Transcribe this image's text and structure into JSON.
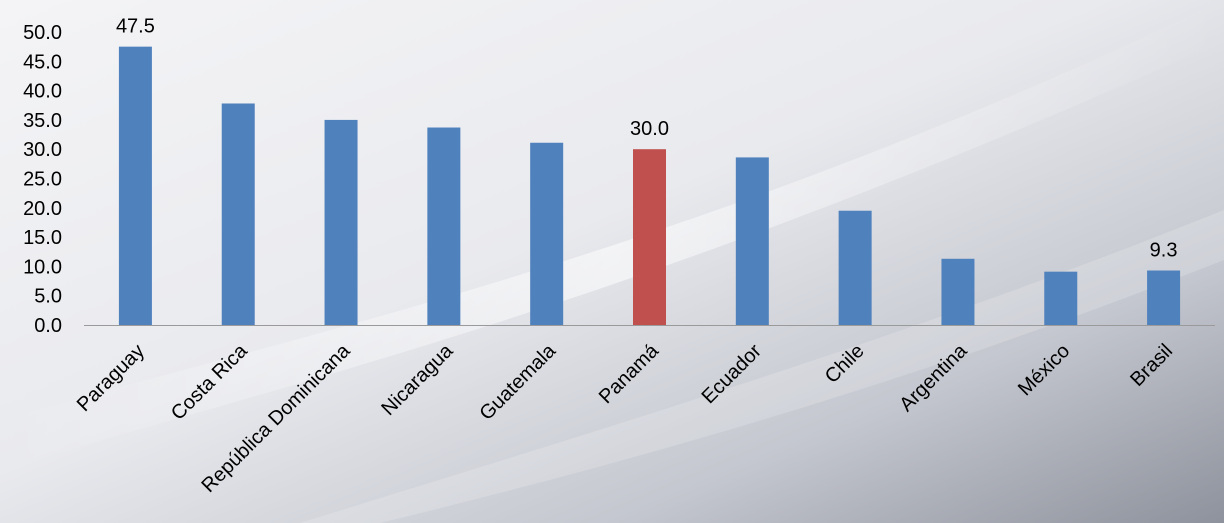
{
  "chart_data": {
    "type": "bar",
    "title": "",
    "xlabel": "",
    "ylabel": "",
    "categories": [
      "Paraguay",
      "Costa Rica",
      "República Dominicana",
      "Nicaragua",
      "Guatemala",
      "Panamá",
      "Ecuador",
      "Chile",
      "Argentina",
      "México",
      "Brasil"
    ],
    "values": [
      47.5,
      37.8,
      35.0,
      33.7,
      31.1,
      30.0,
      28.6,
      19.5,
      11.3,
      9.1,
      9.3
    ],
    "data_labels": [
      "47.5",
      "",
      "",
      "",
      "",
      "30.0",
      "",
      "",
      "",
      "",
      "9.3"
    ],
    "bar_colors": [
      "#4F81BD",
      "#4F81BD",
      "#4F81BD",
      "#4F81BD",
      "#4F81BD",
      "#C0504D",
      "#4F81BD",
      "#4F81BD",
      "#4F81BD",
      "#4F81BD",
      "#4F81BD"
    ],
    "ylim": [
      0,
      50
    ],
    "yticks": [
      "0.0",
      "5.0",
      "10.0",
      "15.0",
      "20.0",
      "25.0",
      "30.0",
      "35.0",
      "40.0",
      "45.0",
      "50.0"
    ],
    "grid": false,
    "legend": "none"
  }
}
